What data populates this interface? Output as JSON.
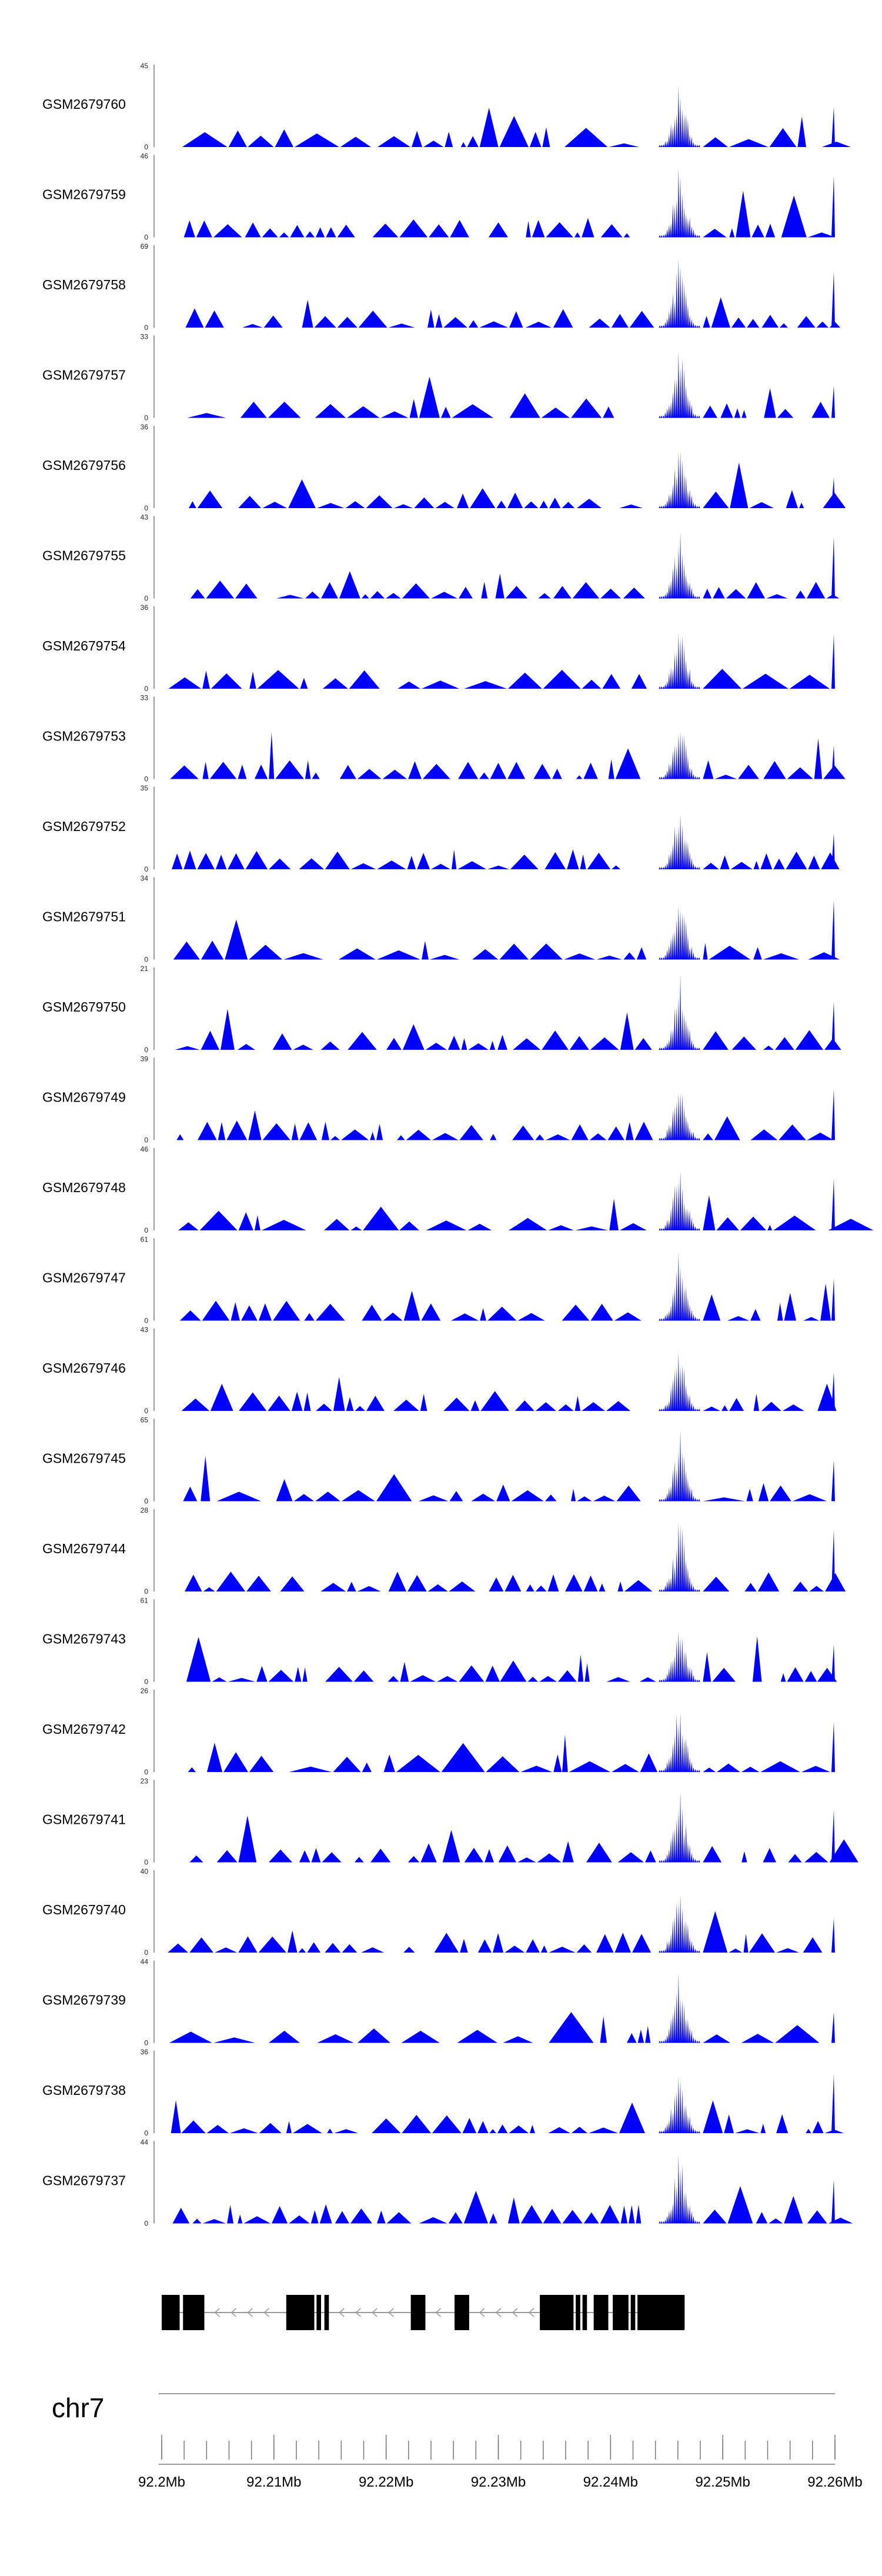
{
  "colors": {
    "coverage": "#0000ff",
    "gene": "#000000",
    "axis": "#9a9a9a"
  },
  "chart_data": {
    "type": "area",
    "chromosome": "chr7",
    "xlim": [
      92.2,
      92.26
    ],
    "x_unit": "Mb",
    "xticks": [
      "92.2Mb",
      "92.21Mb",
      "92.22Mb",
      "92.23Mb",
      "92.24Mb",
      "92.25Mb",
      "92.26Mb"
    ],
    "tracks": [
      {
        "name": "GSM2679760",
        "ymax": 45,
        "ymin": 0
      },
      {
        "name": "GSM2679759",
        "ymax": 46,
        "ymin": 0
      },
      {
        "name": "GSM2679758",
        "ymax": 69,
        "ymin": 0
      },
      {
        "name": "GSM2679757",
        "ymax": 33,
        "ymin": 0
      },
      {
        "name": "GSM2679756",
        "ymax": 36,
        "ymin": 0
      },
      {
        "name": "GSM2679755",
        "ymax": 43,
        "ymin": 0
      },
      {
        "name": "GSM2679754",
        "ymax": 36,
        "ymin": 0
      },
      {
        "name": "GSM2679753",
        "ymax": 33,
        "ymin": 0
      },
      {
        "name": "GSM2679752",
        "ymax": 35,
        "ymin": 0
      },
      {
        "name": "GSM2679751",
        "ymax": 34,
        "ymin": 0
      },
      {
        "name": "GSM2679750",
        "ymax": 21,
        "ymin": 0
      },
      {
        "name": "GSM2679749",
        "ymax": 39,
        "ymin": 0
      },
      {
        "name": "GSM2679748",
        "ymax": 46,
        "ymin": 0
      },
      {
        "name": "GSM2679747",
        "ymax": 61,
        "ymin": 0
      },
      {
        "name": "GSM2679746",
        "ymax": 43,
        "ymin": 0
      },
      {
        "name": "GSM2679745",
        "ymax": 65,
        "ymin": 0
      },
      {
        "name": "GSM2679744",
        "ymax": 28,
        "ymin": 0
      },
      {
        "name": "GSM2679743",
        "ymax": 61,
        "ymin": 0
      },
      {
        "name": "GSM2679742",
        "ymax": 26,
        "ymin": 0
      },
      {
        "name": "GSM2679741",
        "ymax": 23,
        "ymin": 0
      },
      {
        "name": "GSM2679740",
        "ymax": 40,
        "ymin": 0
      },
      {
        "name": "GSM2679739",
        "ymax": 44,
        "ymin": 0
      },
      {
        "name": "GSM2679738",
        "ymax": 36,
        "ymin": 0
      },
      {
        "name": "GSM2679737",
        "ymax": 44,
        "ymin": 0
      }
    ],
    "peak": {
      "center_mb": 92.2461,
      "span_mb": 0.0012
    },
    "gene_model": {
      "strand": "-",
      "exons_mb": [
        [
          92.2,
          92.2016
        ],
        [
          92.2019,
          92.2038
        ],
        [
          92.2111,
          92.2136
        ],
        [
          92.2138,
          92.2142
        ],
        [
          92.2145,
          92.2149
        ],
        [
          92.2222,
          92.2235
        ],
        [
          92.2261,
          92.2274
        ],
        [
          92.2337,
          92.2367
        ],
        [
          92.2369,
          92.2373
        ],
        [
          92.2375,
          92.2379
        ],
        [
          92.2385,
          92.2398
        ],
        [
          92.2402,
          92.2416
        ],
        [
          92.2418,
          92.2422
        ],
        [
          92.2424,
          92.2466
        ]
      ],
      "utr_mb": [
        [
          92.2,
          92.2009
        ]
      ]
    }
  }
}
